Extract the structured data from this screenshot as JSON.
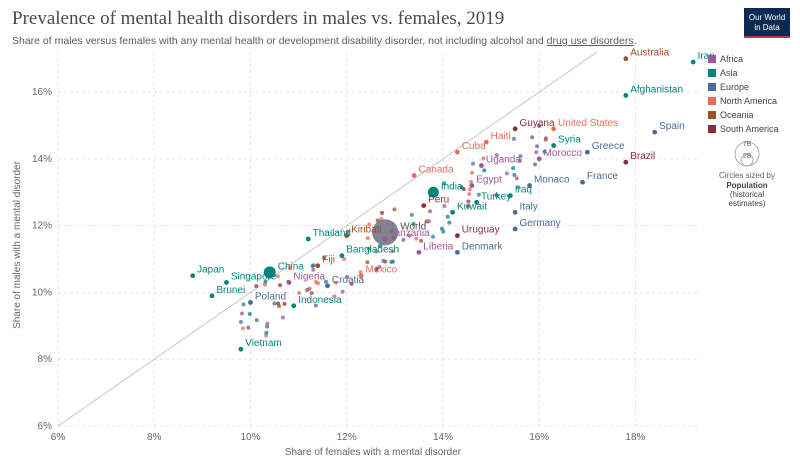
{
  "title": "Prevalence of mental health disorders in males vs. females, 2019",
  "subtitle": {
    "main": "Share of males versus females with any mental health or development disability disorder, not including alcohol and",
    "link": "drug use disorders",
    "end": "."
  },
  "logo": {
    "line1": "Our World",
    "line2": "in Data"
  },
  "colors": {
    "Africa": "#a2559c",
    "Asia": "#00847e",
    "Europe": "#4c6a9c",
    "North America": "#e56e5a",
    "Oceania": "#9a5129",
    "South America": "#883039"
  },
  "size_legend": {
    "title": "Circles sized by",
    "bold1": "Population",
    "sub1": "(historical",
    "sub2": "estimates)",
    "big": "7B",
    "small": "2B"
  },
  "chart_data": {
    "type": "scatter",
    "title": "Prevalence of mental health disorders in males vs. females, 2019",
    "xlabel": "Share of females with a mental disorder",
    "ylabel": "Share of males with a mental disorder",
    "xlim": [
      6,
      19.3
    ],
    "ylim": [
      6,
      17.2
    ],
    "xticks": [
      "6%",
      "8%",
      "10%",
      "12%",
      "14%",
      "16%",
      "18%"
    ],
    "yticks": [
      "6%",
      "8%",
      "10%",
      "12%",
      "14%",
      "16%"
    ],
    "legend": [
      "Africa",
      "Asia",
      "Europe",
      "North America",
      "Oceania",
      "South America"
    ],
    "legend_position": "right",
    "grid": true,
    "labeled_points": [
      {
        "name": "Australia",
        "x": 17.8,
        "y": 17.0,
        "region": "Oceania"
      },
      {
        "name": "Iran",
        "x": 19.2,
        "y": 16.9,
        "region": "Asia"
      },
      {
        "name": "Afghanistan",
        "x": 17.8,
        "y": 15.9,
        "region": "Asia"
      },
      {
        "name": "Guyana",
        "x": 15.5,
        "y": 14.9,
        "region": "South America"
      },
      {
        "name": "United States",
        "x": 16.3,
        "y": 14.9,
        "region": "North America"
      },
      {
        "name": "Spain",
        "x": 18.4,
        "y": 14.8,
        "region": "Europe"
      },
      {
        "name": "Haiti",
        "x": 14.9,
        "y": 14.5,
        "region": "North America"
      },
      {
        "name": "Syria",
        "x": 16.3,
        "y": 14.4,
        "region": "Asia"
      },
      {
        "name": "Cuba",
        "x": 14.3,
        "y": 14.2,
        "region": "North America"
      },
      {
        "name": "Greece",
        "x": 17.0,
        "y": 14.2,
        "region": "Europe"
      },
      {
        "name": "Morocco",
        "x": 16.0,
        "y": 14.0,
        "region": "Africa"
      },
      {
        "name": "Brazil",
        "x": 17.8,
        "y": 13.9,
        "region": "South America"
      },
      {
        "name": "Uganda",
        "x": 14.8,
        "y": 13.8,
        "region": "Africa"
      },
      {
        "name": "Canada",
        "x": 13.4,
        "y": 13.5,
        "region": "North America"
      },
      {
        "name": "India",
        "x": 13.8,
        "y": 13.0,
        "region": "Asia"
      },
      {
        "name": "Egypt",
        "x": 14.6,
        "y": 13.2,
        "region": "Africa"
      },
      {
        "name": "Monaco",
        "x": 15.8,
        "y": 13.2,
        "region": "Europe"
      },
      {
        "name": "France",
        "x": 16.9,
        "y": 13.3,
        "region": "Europe"
      },
      {
        "name": "Iraq",
        "x": 15.4,
        "y": 12.9,
        "region": "Asia"
      },
      {
        "name": "Turkey",
        "x": 14.7,
        "y": 12.7,
        "region": "Asia"
      },
      {
        "name": "Peru",
        "x": 13.6,
        "y": 12.6,
        "region": "South America"
      },
      {
        "name": "Italy",
        "x": 15.5,
        "y": 12.4,
        "region": "Europe"
      },
      {
        "name": "Kuwait",
        "x": 14.2,
        "y": 12.4,
        "region": "Asia"
      },
      {
        "name": "World",
        "x": 12.8,
        "y": 11.8,
        "region": "World"
      },
      {
        "name": "Germany",
        "x": 15.5,
        "y": 11.9,
        "region": "Europe"
      },
      {
        "name": "Thailand",
        "x": 11.2,
        "y": 11.6,
        "region": "Asia"
      },
      {
        "name": "Kiribati",
        "x": 12.0,
        "y": 11.7,
        "region": "Oceania"
      },
      {
        "name": "Tanzania",
        "x": 12.8,
        "y": 11.6,
        "region": "Africa"
      },
      {
        "name": "Uruguay",
        "x": 14.3,
        "y": 11.7,
        "region": "South America"
      },
      {
        "name": "Denmark",
        "x": 14.3,
        "y": 11.2,
        "region": "Europe"
      },
      {
        "name": "Liberia",
        "x": 13.5,
        "y": 11.2,
        "region": "Africa"
      },
      {
        "name": "Bangladesh",
        "x": 11.9,
        "y": 11.1,
        "region": "Asia"
      },
      {
        "name": "China",
        "x": 10.4,
        "y": 10.6,
        "region": "Asia"
      },
      {
        "name": "Fiji",
        "x": 11.4,
        "y": 10.8,
        "region": "Oceania"
      },
      {
        "name": "Mexico",
        "x": 12.3,
        "y": 10.5,
        "region": "North America"
      },
      {
        "name": "Nigeria",
        "x": 10.8,
        "y": 10.3,
        "region": "Africa"
      },
      {
        "name": "Japan",
        "x": 8.8,
        "y": 10.5,
        "region": "Asia"
      },
      {
        "name": "Singapore",
        "x": 9.5,
        "y": 10.3,
        "region": "Asia"
      },
      {
        "name": "Croatia",
        "x": 11.6,
        "y": 10.2,
        "region": "Europe"
      },
      {
        "name": "Brunei",
        "x": 9.2,
        "y": 9.9,
        "region": "Asia"
      },
      {
        "name": "Poland",
        "x": 10.0,
        "y": 9.7,
        "region": "Europe"
      },
      {
        "name": "Indonesia",
        "x": 10.9,
        "y": 9.6,
        "region": "Asia"
      },
      {
        "name": "Vietnam",
        "x": 9.8,
        "y": 8.3,
        "region": "Asia"
      }
    ]
  }
}
